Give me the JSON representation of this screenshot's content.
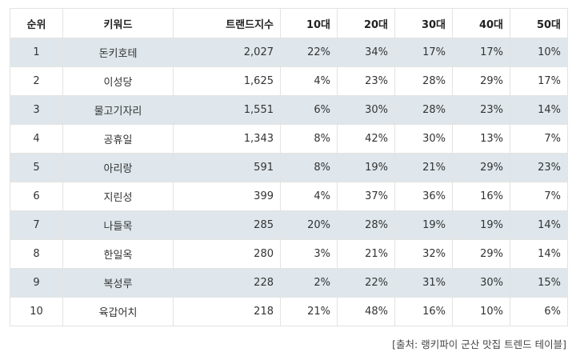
{
  "table": {
    "headers": [
      "순위",
      "키워드",
      "트랜드지수",
      "10대",
      "20대",
      "30대",
      "40대",
      "50대"
    ],
    "highlight_color": "#e0483b",
    "row_shade_color": "#dfe7ec",
    "rows": [
      {
        "rank": "1",
        "keyword": "돈키호테",
        "index": "2,027",
        "age10": "22%",
        "age20": "34%",
        "age30": "17%",
        "age40": "17%",
        "age50": "10%",
        "max": "age20"
      },
      {
        "rank": "2",
        "keyword": "이성당",
        "index": "1,625",
        "age10": "4%",
        "age20": "23%",
        "age30": "28%",
        "age40": "29%",
        "age50": "17%",
        "max": "age40"
      },
      {
        "rank": "3",
        "keyword": "물고기자리",
        "index": "1,551",
        "age10": "6%",
        "age20": "30%",
        "age30": "28%",
        "age40": "23%",
        "age50": "14%",
        "max": "age20"
      },
      {
        "rank": "4",
        "keyword": "공휴일",
        "index": "1,343",
        "age10": "8%",
        "age20": "42%",
        "age30": "30%",
        "age40": "13%",
        "age50": "7%",
        "max": "age20"
      },
      {
        "rank": "5",
        "keyword": "아리랑",
        "index": "591",
        "age10": "8%",
        "age20": "19%",
        "age30": "21%",
        "age40": "29%",
        "age50": "23%",
        "max": "age40"
      },
      {
        "rank": "6",
        "keyword": "지린성",
        "index": "399",
        "age10": "4%",
        "age20": "37%",
        "age30": "36%",
        "age40": "16%",
        "age50": "7%",
        "max": "age20"
      },
      {
        "rank": "7",
        "keyword": "나들목",
        "index": "285",
        "age10": "20%",
        "age20": "28%",
        "age30": "19%",
        "age40": "19%",
        "age50": "14%",
        "max": "age20"
      },
      {
        "rank": "8",
        "keyword": "한일옥",
        "index": "280",
        "age10": "3%",
        "age20": "21%",
        "age30": "32%",
        "age40": "29%",
        "age50": "14%",
        "max": "age30"
      },
      {
        "rank": "9",
        "keyword": "복성루",
        "index": "228",
        "age10": "2%",
        "age20": "22%",
        "age30": "31%",
        "age40": "30%",
        "age50": "15%",
        "max": "age30"
      },
      {
        "rank": "10",
        "keyword": "육갑어치",
        "index": "218",
        "age10": "21%",
        "age20": "48%",
        "age30": "16%",
        "age40": "10%",
        "age50": "6%",
        "max": "age20"
      }
    ]
  },
  "source": "[출처: 랭키파이 군산 맛집 트렌드 테이블]"
}
